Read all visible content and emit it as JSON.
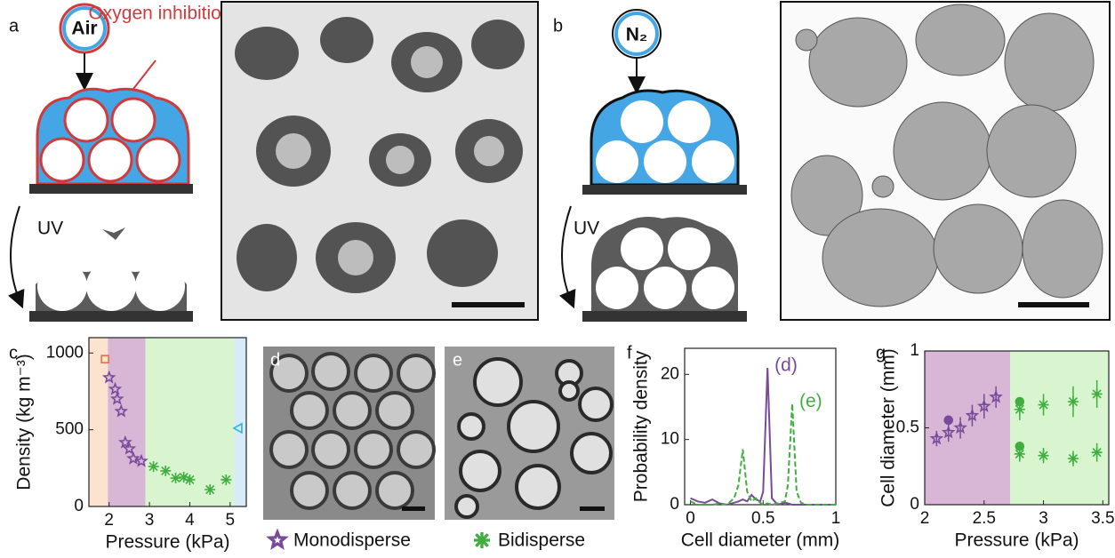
{
  "figure": {
    "a": {
      "label": "a",
      "gas": "Air",
      "note": "Oxygen inhibition",
      "process": "UV"
    },
    "b": {
      "label": "b",
      "gas": "N₂",
      "process": "UV"
    },
    "d": {
      "label": "d"
    },
    "e": {
      "label": "e"
    }
  },
  "chart_data": [
    {
      "type": "scatter",
      "panel": "c",
      "x_label": "Pressure (kPa)",
      "y_label": "Density (kg m⁻³)",
      "xlim": [
        1.5,
        5.4
      ],
      "ylim": [
        0,
        1100
      ],
      "xticks": [
        2,
        3,
        4,
        5
      ],
      "yticks": [
        0,
        500,
        1000
      ],
      "regions": [
        {
          "from": 1.5,
          "to": 1.97,
          "color": "#fbe3cf"
        },
        {
          "from": 1.97,
          "to": 2.9,
          "color": "#d7b6d6"
        },
        {
          "from": 2.9,
          "to": 5.1,
          "color": "#d9f5d0"
        },
        {
          "from": 5.1,
          "to": 5.4,
          "color": "#d7ecf8"
        }
      ],
      "series": [
        {
          "name": "Monodisperse",
          "color": "#7a4a9a",
          "marker": "star",
          "x": [
            2.0,
            2.15,
            2.2,
            2.3,
            2.4,
            2.5,
            2.6,
            2.8
          ],
          "values": [
            840,
            764,
            700,
            620,
            417,
            376,
            312,
            295
          ]
        },
        {
          "name": "Bidisperse",
          "color": "#3fae3f",
          "marker": "asterisk",
          "x": [
            3.1,
            3.4,
            3.65,
            3.85,
            4.0,
            4.5,
            4.9
          ],
          "values": [
            260,
            232,
            185,
            191,
            174,
            110,
            174
          ]
        },
        {
          "color": "#e8704a",
          "marker": "square",
          "x": [
            1.9
          ],
          "values": [
            960
          ]
        },
        {
          "color": "#29b6e0",
          "marker": "triangle",
          "x": [
            5.2
          ],
          "values": [
            510
          ]
        }
      ]
    },
    {
      "type": "line",
      "panel": "f",
      "x_label": "Cell diameter (mm)",
      "y_label": "Probability density",
      "xlim": [
        -0.04,
        1.0
      ],
      "ylim": [
        0,
        24
      ],
      "xticks": [
        0,
        0.5,
        1
      ],
      "yticks": [
        0,
        10,
        20
      ],
      "x": [
        0,
        0.05,
        0.1,
        0.15,
        0.2,
        0.25,
        0.3,
        0.33,
        0.36,
        0.39,
        0.42,
        0.45,
        0.48,
        0.5,
        0.53,
        0.56,
        0.6,
        0.65,
        0.67,
        0.7,
        0.73,
        0.76,
        0.8,
        0.9,
        1.0
      ],
      "series": [
        {
          "name": "(d)",
          "color": "#7a4a9a",
          "dashed": false,
          "values": [
            1,
            0.5,
            0.3,
            0.8,
            0.2,
            0,
            0.3,
            0.5,
            0.8,
            0.5,
            1.5,
            0.8,
            0.5,
            2,
            21,
            1,
            0,
            0.3,
            0.2,
            0,
            0,
            0,
            0,
            0,
            0
          ]
        },
        {
          "name": "(e)",
          "color": "#3fae3f",
          "dashed": true,
          "values": [
            0.5,
            0,
            0,
            0,
            0.2,
            0,
            1,
            3,
            8.5,
            2,
            0.5,
            1,
            0.3,
            0,
            0.2,
            0,
            0.2,
            0.5,
            3,
            15.5,
            2,
            0.3,
            0,
            0,
            0
          ]
        }
      ]
    },
    {
      "type": "scatter",
      "panel": "g",
      "x_label": "Pressure (kPa)",
      "y_label": "Cell diameter (mm)",
      "xlim": [
        2.0,
        3.55
      ],
      "ylim": [
        0,
        1
      ],
      "xticks": [
        2,
        2.5,
        3,
        3.5
      ],
      "yticks": [
        0,
        0.5,
        1
      ],
      "regions": [
        {
          "from": 2.0,
          "to": 2.72,
          "color": "#d7b6d6"
        },
        {
          "from": 2.72,
          "to": 3.55,
          "color": "#d9f5d0"
        }
      ],
      "series": [
        {
          "color": "#7a4a9a",
          "marker": "star",
          "x": [
            2.1,
            2.2,
            2.3,
            2.4,
            2.5,
            2.6
          ],
          "values": [
            0.43,
            0.47,
            0.5,
            0.58,
            0.64,
            0.7
          ],
          "errors": [
            0.05,
            0.06,
            0.07,
            0.07,
            0.08,
            0.07
          ]
        },
        {
          "color": "#3fae3f",
          "marker": "asterisk",
          "x": [
            2.8,
            3.0,
            3.25,
            3.45
          ],
          "values": [
            0.62,
            0.65,
            0.67,
            0.72
          ],
          "errors": [
            0.07,
            0.07,
            0.1,
            0.09
          ]
        },
        {
          "color": "#3fae3f",
          "marker": "asterisk",
          "x": [
            2.8,
            3.0,
            3.25,
            3.45
          ],
          "values": [
            0.33,
            0.32,
            0.3,
            0.34
          ],
          "errors": [
            0.05,
            0.05,
            0.05,
            0.06
          ]
        },
        {
          "color": "#7a4a9a",
          "marker": "dot",
          "x": [
            2.2
          ],
          "values": [
            0.55
          ]
        },
        {
          "color": "#3fae3f",
          "marker": "dot",
          "x": [
            2.8,
            2.8
          ],
          "values": [
            0.67,
            0.38
          ]
        }
      ]
    }
  ]
}
